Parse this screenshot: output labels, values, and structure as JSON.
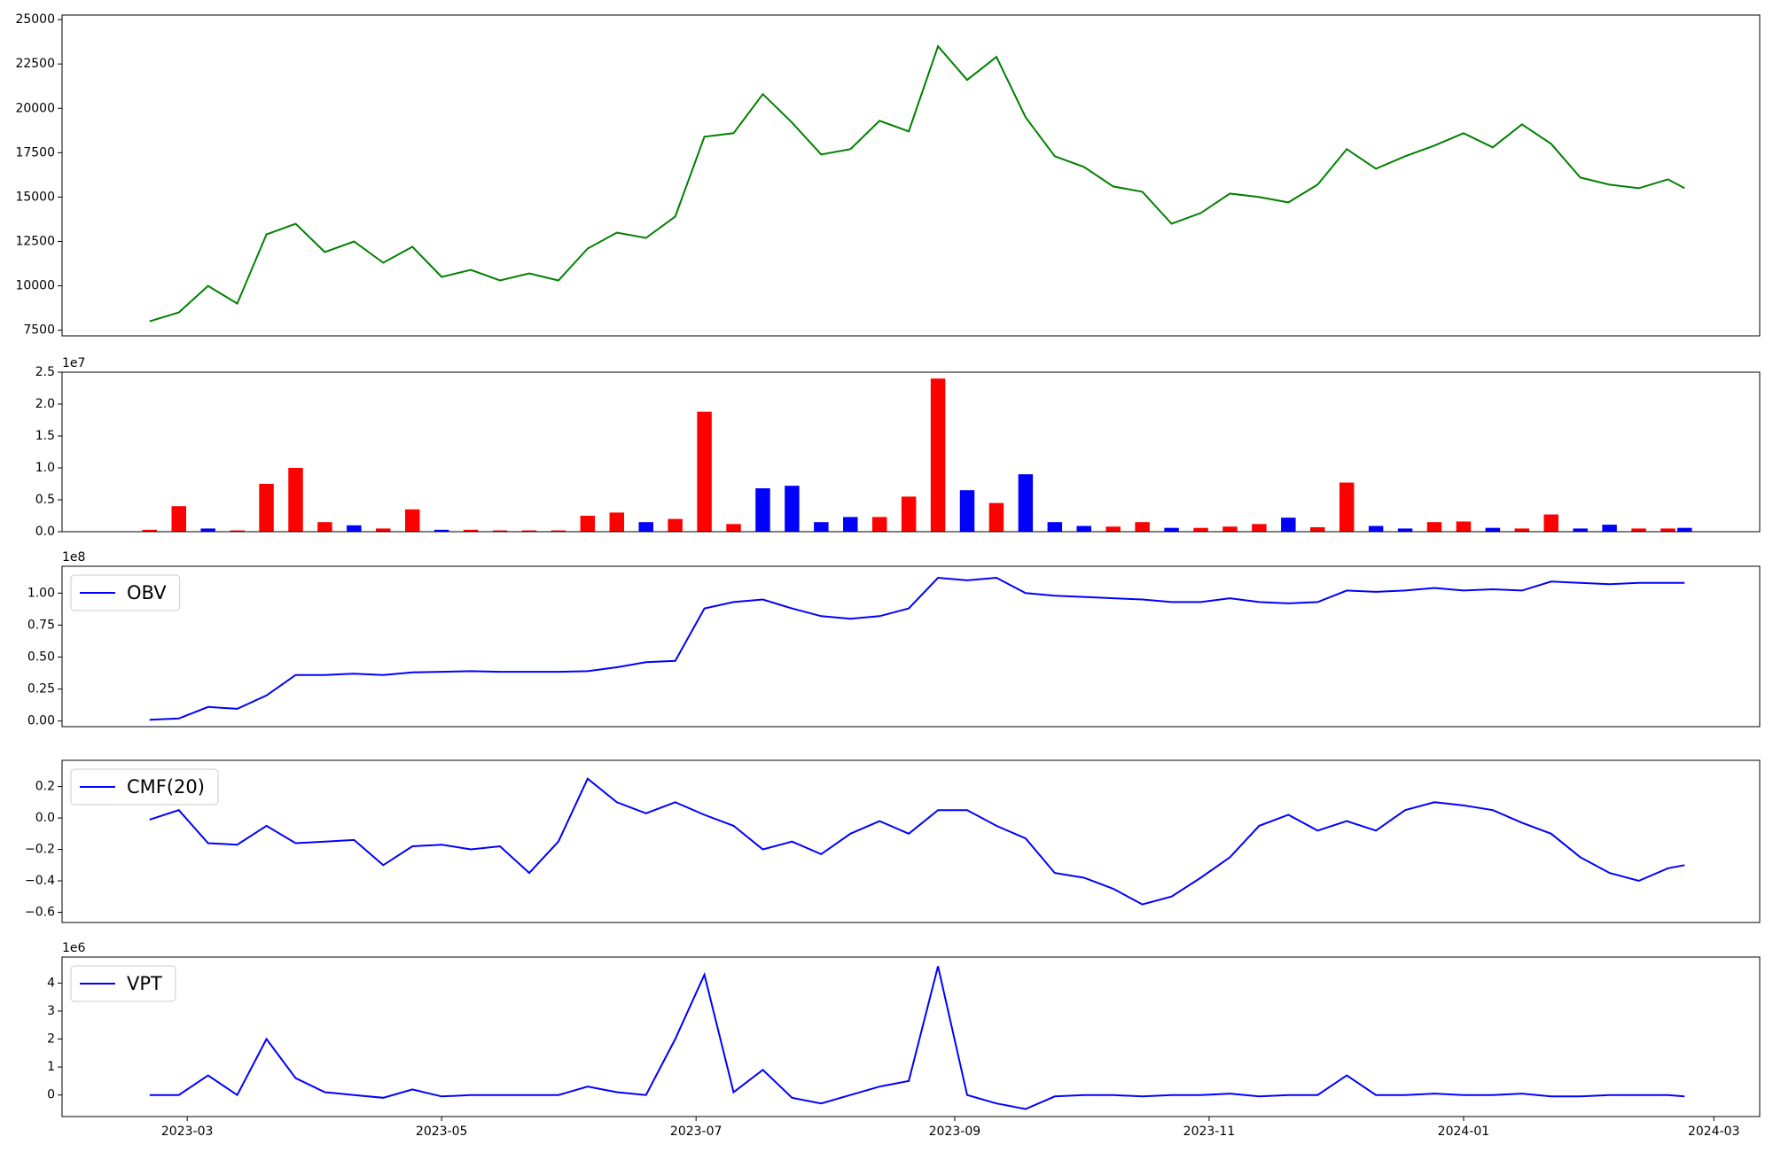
{
  "chart_data": [
    {
      "type": "line",
      "x": [
        "2023-02-20",
        "2023-02-27",
        "2023-03-06",
        "2023-03-13",
        "2023-03-20",
        "2023-03-27",
        "2023-04-03",
        "2023-04-10",
        "2023-04-17",
        "2023-04-24",
        "2023-05-01",
        "2023-05-08",
        "2023-05-15",
        "2023-05-22",
        "2023-05-29",
        "2023-06-05",
        "2023-06-12",
        "2023-06-19",
        "2023-06-26",
        "2023-07-03",
        "2023-07-10",
        "2023-07-17",
        "2023-07-24",
        "2023-07-31",
        "2023-08-07",
        "2023-08-14",
        "2023-08-21",
        "2023-08-28",
        "2023-09-04",
        "2023-09-11",
        "2023-09-18",
        "2023-09-25",
        "2023-10-02",
        "2023-10-09",
        "2023-10-16",
        "2023-10-23",
        "2023-10-30",
        "2023-11-06",
        "2023-11-13",
        "2023-11-20",
        "2023-11-27",
        "2023-12-04",
        "2023-12-11",
        "2023-12-18",
        "2023-12-25",
        "2024-01-01",
        "2024-01-08",
        "2024-01-15",
        "2024-01-22",
        "2024-01-29",
        "2024-02-05",
        "2024-02-12",
        "2024-02-19",
        "2024-02-23"
      ],
      "values": [
        8000,
        8500,
        10000,
        9000,
        12900,
        13500,
        11900,
        12500,
        11300,
        12200,
        10500,
        10900,
        10300,
        10700,
        10300,
        12100,
        13000,
        12700,
        13900,
        18400,
        18600,
        20800,
        19200,
        17400,
        17700,
        19300,
        18700,
        23500,
        21600,
        22900,
        19500,
        17300,
        16700,
        15600,
        15300,
        13500,
        14100,
        15200,
        15000,
        14700,
        15700,
        17700,
        16600,
        17300,
        17900,
        18600,
        17800,
        19100,
        18000,
        16100,
        15700,
        15500,
        16000,
        15500
      ],
      "color": "#008000",
      "xlim": [
        "2023-01-30",
        "2024-03-12"
      ],
      "ylim": [
        7182,
        25255
      ],
      "yticks": [
        7500,
        10000,
        12500,
        15000,
        17500,
        20000,
        22500,
        25000
      ]
    },
    {
      "type": "bar",
      "x": [
        "2023-02-20",
        "2023-02-27",
        "2023-03-06",
        "2023-03-13",
        "2023-03-20",
        "2023-03-27",
        "2023-04-03",
        "2023-04-10",
        "2023-04-17",
        "2023-04-24",
        "2023-05-01",
        "2023-05-08",
        "2023-05-15",
        "2023-05-22",
        "2023-05-29",
        "2023-06-05",
        "2023-06-12",
        "2023-06-19",
        "2023-06-26",
        "2023-07-03",
        "2023-07-10",
        "2023-07-17",
        "2023-07-24",
        "2023-07-31",
        "2023-08-07",
        "2023-08-14",
        "2023-08-21",
        "2023-08-28",
        "2023-09-04",
        "2023-09-11",
        "2023-09-18",
        "2023-09-25",
        "2023-10-02",
        "2023-10-09",
        "2023-10-16",
        "2023-10-23",
        "2023-10-30",
        "2023-11-06",
        "2023-11-13",
        "2023-11-20",
        "2023-11-27",
        "2023-12-04",
        "2023-12-11",
        "2023-12-18",
        "2023-12-25",
        "2024-01-01",
        "2024-01-08",
        "2024-01-15",
        "2024-01-22",
        "2024-01-29",
        "2024-02-05",
        "2024-02-12",
        "2024-02-19",
        "2024-02-23"
      ],
      "values": [
        300000,
        4000000,
        500000,
        200000,
        7500000,
        10000000,
        1500000,
        1000000,
        500000,
        3500000,
        300000,
        300000,
        200000,
        200000,
        200000,
        2500000,
        3000000,
        1500000,
        2000000,
        18800000,
        1200000,
        6800000,
        7200000,
        1500000,
        2300000,
        2300000,
        5500000,
        24000000,
        6500000,
        4500000,
        9000000,
        1500000,
        900000,
        800000,
        1500000,
        600000,
        600000,
        800000,
        1200000,
        2200000,
        700000,
        7700000,
        900000,
        500000,
        1500000,
        1600000,
        600000,
        500000,
        2700000,
        500000,
        1100000,
        500000,
        500000,
        600000
      ],
      "colors": [
        "#ff0000",
        "#ff0000",
        "#0000ff",
        "#ff0000",
        "#ff0000",
        "#ff0000",
        "#ff0000",
        "#0000ff",
        "#ff0000",
        "#ff0000",
        "#0000ff",
        "#ff0000",
        "#ff0000",
        "#ff0000",
        "#ff0000",
        "#ff0000",
        "#ff0000",
        "#0000ff",
        "#ff0000",
        "#ff0000",
        "#ff0000",
        "#0000ff",
        "#0000ff",
        "#0000ff",
        "#0000ff",
        "#ff0000",
        "#ff0000",
        "#ff0000",
        "#0000ff",
        "#ff0000",
        "#0000ff",
        "#0000ff",
        "#0000ff",
        "#ff0000",
        "#ff0000",
        "#0000ff",
        "#ff0000",
        "#ff0000",
        "#ff0000",
        "#0000ff",
        "#ff0000",
        "#ff0000",
        "#0000ff",
        "#0000ff",
        "#ff0000",
        "#ff0000",
        "#0000ff",
        "#ff0000",
        "#ff0000",
        "#0000ff",
        "#0000ff",
        "#ff0000",
        "#ff0000",
        "#0000ff"
      ],
      "xlim": [
        "2023-01-30",
        "2024-03-12"
      ],
      "ylim": [
        0,
        25000000
      ],
      "y_offset_label": "1e7",
      "yticks": [
        {
          "value": 0,
          "label": "0.0"
        },
        {
          "value": 5000000,
          "label": "0.5"
        },
        {
          "value": 10000000,
          "label": "1.0"
        },
        {
          "value": 15000000,
          "label": "1.5"
        },
        {
          "value": 20000000,
          "label": "2.0"
        },
        {
          "value": 25000000,
          "label": "2.5"
        }
      ]
    },
    {
      "type": "line",
      "x": [
        "2023-02-20",
        "2023-02-27",
        "2023-03-06",
        "2023-03-13",
        "2023-03-20",
        "2023-03-27",
        "2023-04-03",
        "2023-04-10",
        "2023-04-17",
        "2023-04-24",
        "2023-05-01",
        "2023-05-08",
        "2023-05-15",
        "2023-05-22",
        "2023-05-29",
        "2023-06-05",
        "2023-06-12",
        "2023-06-19",
        "2023-06-26",
        "2023-07-03",
        "2023-07-10",
        "2023-07-17",
        "2023-07-24",
        "2023-07-31",
        "2023-08-07",
        "2023-08-14",
        "2023-08-21",
        "2023-08-28",
        "2023-09-04",
        "2023-09-11",
        "2023-09-18",
        "2023-09-25",
        "2023-10-02",
        "2023-10-09",
        "2023-10-16",
        "2023-10-23",
        "2023-10-30",
        "2023-11-06",
        "2023-11-13",
        "2023-11-20",
        "2023-11-27",
        "2023-12-04",
        "2023-12-11",
        "2023-12-18",
        "2023-12-25",
        "2024-01-01",
        "2024-01-08",
        "2024-01-15",
        "2024-01-22",
        "2024-01-29",
        "2024-02-05",
        "2024-02-12",
        "2024-02-19",
        "2024-02-23"
      ],
      "series": [
        {
          "name": "OBV",
          "color": "#0000ff",
          "values": [
            1000000,
            2000000,
            11000000,
            9500000,
            20000000,
            36000000,
            36000000,
            37000000,
            36000000,
            38000000,
            38500000,
            39000000,
            38500000,
            38500000,
            38500000,
            39000000,
            42000000,
            46000000,
            47000000,
            88000000,
            93000000,
            95000000,
            88000000,
            82000000,
            80000000,
            82000000,
            88000000,
            112000000,
            110000000,
            112000000,
            100000000,
            98000000,
            97000000,
            96000000,
            95000000,
            93000000,
            93000000,
            96000000,
            93000000,
            92000000,
            93000000,
            102000000,
            101000000,
            102000000,
            104000000,
            102000000,
            103000000,
            102000000,
            109000000,
            108000000,
            107000000,
            108000000,
            108000000,
            108000000
          ]
        }
      ],
      "legend": "upper left",
      "xlim": [
        "2023-01-30",
        "2024-03-12"
      ],
      "ylim": [
        -4400000,
        121000000
      ],
      "y_offset_label": "1e8",
      "yticks": [
        {
          "value": 0,
          "label": "0.00"
        },
        {
          "value": 25000000,
          "label": "0.25"
        },
        {
          "value": 50000000,
          "label": "0.50"
        },
        {
          "value": 75000000,
          "label": "0.75"
        },
        {
          "value": 100000000,
          "label": "1.00"
        }
      ]
    },
    {
      "type": "line",
      "x": [
        "2023-02-20",
        "2023-02-27",
        "2023-03-06",
        "2023-03-13",
        "2023-03-20",
        "2023-03-27",
        "2023-04-03",
        "2023-04-10",
        "2023-04-17",
        "2023-04-24",
        "2023-05-01",
        "2023-05-08",
        "2023-05-15",
        "2023-05-22",
        "2023-05-29",
        "2023-06-05",
        "2023-06-12",
        "2023-06-19",
        "2023-06-26",
        "2023-07-03",
        "2023-07-10",
        "2023-07-17",
        "2023-07-24",
        "2023-07-31",
        "2023-08-07",
        "2023-08-14",
        "2023-08-21",
        "2023-08-28",
        "2023-09-04",
        "2023-09-11",
        "2023-09-18",
        "2023-09-25",
        "2023-10-02",
        "2023-10-09",
        "2023-10-16",
        "2023-10-23",
        "2023-10-30",
        "2023-11-06",
        "2023-11-13",
        "2023-11-20",
        "2023-11-27",
        "2023-12-04",
        "2023-12-11",
        "2023-12-18",
        "2023-12-25",
        "2024-01-01",
        "2024-01-08",
        "2024-01-15",
        "2024-01-22",
        "2024-01-29",
        "2024-02-05",
        "2024-02-12",
        "2024-02-19",
        "2024-02-23"
      ],
      "series": [
        {
          "name": "CMF(20)",
          "color": "#0000ff",
          "values": [
            -0.01,
            0.05,
            -0.16,
            -0.17,
            -0.05,
            -0.16,
            -0.15,
            -0.14,
            -0.3,
            -0.18,
            -0.17,
            -0.2,
            -0.18,
            -0.35,
            -0.15,
            0.25,
            0.1,
            0.03,
            0.1,
            0.02,
            -0.05,
            -0.2,
            -0.15,
            -0.23,
            -0.1,
            -0.02,
            -0.1,
            0.05,
            0.05,
            -0.05,
            -0.13,
            -0.35,
            -0.38,
            -0.45,
            -0.55,
            -0.5,
            -0.38,
            -0.25,
            -0.05,
            0.02,
            -0.08,
            -0.02,
            -0.08,
            0.05,
            0.1,
            0.08,
            0.05,
            -0.03,
            -0.1,
            -0.25,
            -0.35,
            -0.4,
            -0.32,
            -0.3
          ]
        }
      ],
      "legend": "upper left",
      "xlim": [
        "2023-01-30",
        "2024-03-12"
      ],
      "ylim": [
        -0.665,
        0.367
      ],
      "yticks": [
        {
          "value": -0.6,
          "label": "−0.6"
        },
        {
          "value": -0.4,
          "label": "−0.4"
        },
        {
          "value": -0.2,
          "label": "−0.2"
        },
        {
          "value": 0,
          "label": "0.0"
        },
        0.2
      ]
    },
    {
      "type": "line",
      "x": [
        "2023-02-20",
        "2023-02-27",
        "2023-03-06",
        "2023-03-13",
        "2023-03-20",
        "2023-03-27",
        "2023-04-03",
        "2023-04-10",
        "2023-04-17",
        "2023-04-24",
        "2023-05-01",
        "2023-05-08",
        "2023-05-15",
        "2023-05-22",
        "2023-05-29",
        "2023-06-05",
        "2023-06-12",
        "2023-06-19",
        "2023-06-26",
        "2023-07-03",
        "2023-07-10",
        "2023-07-17",
        "2023-07-24",
        "2023-07-31",
        "2023-08-07",
        "2023-08-14",
        "2023-08-21",
        "2023-08-28",
        "2023-09-04",
        "2023-09-11",
        "2023-09-18",
        "2023-09-25",
        "2023-10-02",
        "2023-10-09",
        "2023-10-16",
        "2023-10-23",
        "2023-10-30",
        "2023-11-06",
        "2023-11-13",
        "2023-11-20",
        "2023-11-27",
        "2023-12-04",
        "2023-12-11",
        "2023-12-18",
        "2023-12-25",
        "2024-01-01",
        "2024-01-08",
        "2024-01-15",
        "2024-01-22",
        "2024-01-29",
        "2024-02-05",
        "2024-02-12",
        "2024-02-19",
        "2024-02-23"
      ],
      "series": [
        {
          "name": "VPT",
          "color": "#0000ff",
          "values": [
            0,
            0,
            700000,
            0,
            2000000,
            600000,
            100000,
            0,
            -100000,
            200000,
            -50000,
            0,
            0,
            0,
            0,
            300000,
            100000,
            0,
            2000000,
            4300000,
            100000,
            900000,
            -100000,
            -300000,
            0,
            300000,
            500000,
            4600000,
            0,
            -300000,
            -500000,
            -50000,
            0,
            0,
            -50000,
            0,
            0,
            50000,
            -50000,
            0,
            0,
            700000,
            0,
            0,
            50000,
            0,
            0,
            50000,
            -50000,
            -50000,
            0,
            0,
            0,
            -50000
          ]
        }
      ],
      "legend": "upper left",
      "xlim": [
        "2023-01-30",
        "2024-03-12"
      ],
      "ylim": [
        -770000,
        4930000
      ],
      "y_offset_label": "1e6",
      "yticks": [
        0,
        {
          "value": 1000000,
          "label": "1"
        },
        {
          "value": 2000000,
          "label": "2"
        },
        {
          "value": 3000000,
          "label": "3"
        },
        {
          "value": 4000000,
          "label": "4"
        }
      ],
      "xticks": [
        {
          "value": "2023-03-01",
          "label": "2023-03"
        },
        {
          "value": "2023-05-01",
          "label": "2023-05"
        },
        {
          "value": "2023-07-01",
          "label": "2023-07"
        },
        {
          "value": "2023-09-01",
          "label": "2023-09"
        },
        {
          "value": "2023-11-01",
          "label": "2023-11"
        },
        {
          "value": "2024-01-01",
          "label": "2024-01"
        },
        {
          "value": "2024-03-01",
          "label": "2024-03"
        }
      ]
    }
  ]
}
